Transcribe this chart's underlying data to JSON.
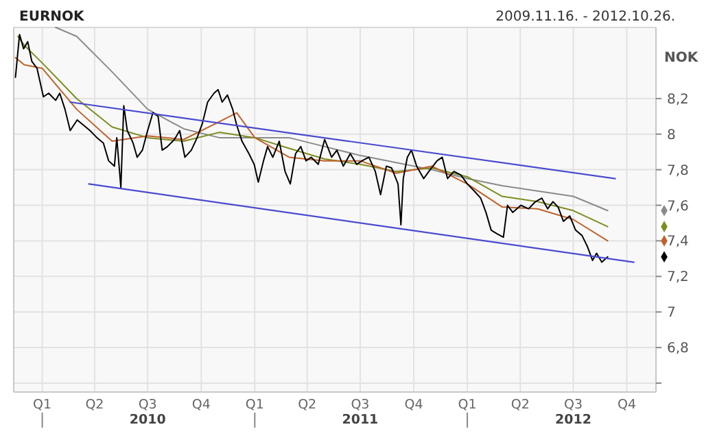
{
  "chart_data": {
    "type": "line",
    "title": "EURNOK",
    "subtitle": "2009.11.16. - 2012.10.26.",
    "ylabel": "NOK",
    "xlim": [
      "2009-11-13",
      "2012-11-20"
    ],
    "xticks": [
      {
        "value": "2010-01-01",
        "label": "Q1"
      },
      {
        "value": "2010-04-01",
        "label": "Q2"
      },
      {
        "value": "2010-07-01",
        "label": "Q3\n2010"
      },
      {
        "value": "2010-10-01",
        "label": "Q4"
      },
      {
        "value": "2011-01-01",
        "label": "Q1"
      },
      {
        "value": "2011-04-01",
        "label": "Q2"
      },
      {
        "value": "2011-07-01",
        "label": "Q3\n2011"
      },
      {
        "value": "2011-10-01",
        "label": "Q4"
      },
      {
        "value": "2012-01-01",
        "label": "Q1"
      },
      {
        "value": "2012-04-01",
        "label": "Q2"
      },
      {
        "value": "2012-07-01",
        "label": "Q3\n2012"
      },
      {
        "value": "2012-10-01",
        "label": "Q4"
      }
    ],
    "ylim": [
      6.55,
      8.6
    ],
    "yticks": [
      {
        "value": 6.6,
        "label": null
      },
      {
        "value": 6.8,
        "label": "6,8"
      },
      7,
      {
        "value": 7.2,
        "label": "7,2"
      },
      {
        "value": 7.4,
        "label": "7,4"
      },
      {
        "value": 7.6,
        "label": "7,6"
      },
      {
        "value": 7.8,
        "label": "7,8"
      },
      8,
      {
        "value": 8.2,
        "label": "8,2"
      }
    ],
    "grid": true,
    "series": [
      {
        "color": "#8a8a8a",
        "x": [
          "2010-01-24",
          "2010-03-01",
          "2010-05-01",
          "2010-07-01",
          "2010-09-01",
          "2010-11-01",
          "2011-01-01",
          "2011-03-01",
          "2011-05-01",
          "2011-07-01",
          "2011-09-01",
          "2011-11-01",
          "2012-01-01",
          "2012-03-01",
          "2012-05-01",
          "2012-07-01",
          "2012-08-29"
        ],
        "values": [
          8.6,
          8.55,
          8.35,
          8.14,
          8.03,
          7.98,
          7.98,
          7.98,
          7.93,
          7.88,
          7.84,
          7.8,
          7.75,
          7.71,
          7.68,
          7.65,
          7.57
        ]
      },
      {
        "color": "#7d8c1e",
        "x": [
          "2009-11-20",
          "2009-12-01",
          "2010-01-01",
          "2010-03-01",
          "2010-05-01",
          "2010-07-01",
          "2010-09-01",
          "2010-11-01",
          "2011-01-01",
          "2011-03-01",
          "2011-05-01",
          "2011-07-01",
          "2011-09-01",
          "2011-11-01",
          "2012-01-01",
          "2012-03-01",
          "2012-05-01",
          "2012-07-01",
          "2012-08-29"
        ],
        "values": [
          8.55,
          8.5,
          8.4,
          8.2,
          8.04,
          7.98,
          7.96,
          8.01,
          7.98,
          7.92,
          7.86,
          7.83,
          7.79,
          7.81,
          7.76,
          7.65,
          7.62,
          7.57,
          7.48
        ]
      },
      {
        "color": "#c0622a",
        "x": [
          "2009-11-16",
          "2009-12-01",
          "2010-01-01",
          "2010-03-01",
          "2010-05-01",
          "2010-07-01",
          "2010-09-01",
          "2010-11-01",
          "2010-12-01",
          "2011-01-01",
          "2011-03-01",
          "2011-05-01",
          "2011-07-01",
          "2011-09-01",
          "2011-11-01",
          "2012-01-01",
          "2012-03-01",
          "2012-05-01",
          "2012-07-01",
          "2012-08-29"
        ],
        "values": [
          8.43,
          8.39,
          8.37,
          8.14,
          7.96,
          7.99,
          7.97,
          8.07,
          8.12,
          7.98,
          7.87,
          7.85,
          7.85,
          7.78,
          7.82,
          7.72,
          7.59,
          7.58,
          7.52,
          7.4
        ]
      },
      {
        "color": "#000000",
        "x": [
          "2009-11-16",
          "2009-11-23",
          "2009-11-30",
          "2009-12-07",
          "2009-12-14",
          "2009-12-23",
          "2010-01-03",
          "2010-01-12",
          "2010-01-24",
          "2010-01-31",
          "2010-02-09",
          "2010-02-18",
          "2010-03-02",
          "2010-03-13",
          "2010-03-24",
          "2010-04-05",
          "2010-04-16",
          "2010-04-25",
          "2010-05-05",
          "2010-05-09",
          "2010-05-16",
          "2010-05-21",
          "2010-05-27",
          "2010-06-06",
          "2010-06-13",
          "2010-06-22",
          "2010-07-01",
          "2010-07-10",
          "2010-07-19",
          "2010-07-26",
          "2010-08-04",
          "2010-08-16",
          "2010-08-25",
          "2010-09-03",
          "2010-09-14",
          "2010-09-24",
          "2010-10-03",
          "2010-10-12",
          "2010-10-23",
          "2010-10-30",
          "2010-11-06",
          "2010-11-15",
          "2010-11-24",
          "2010-12-01",
          "2010-12-10",
          "2010-12-22",
          "2010-12-31",
          "2011-01-07",
          "2011-01-16",
          "2011-01-23",
          "2011-02-01",
          "2011-02-12",
          "2011-02-22",
          "2011-03-03",
          "2011-03-12",
          "2011-03-21",
          "2011-03-30",
          "2011-04-08",
          "2011-04-20",
          "2011-05-01",
          "2011-05-13",
          "2011-05-22",
          "2011-06-02",
          "2011-06-14",
          "2011-06-25",
          "2011-07-04",
          "2011-07-16",
          "2011-07-27",
          "2011-08-05",
          "2011-08-15",
          "2011-08-24",
          "2011-09-04",
          "2011-09-09",
          "2011-09-13",
          "2011-09-20",
          "2011-09-27",
          "2011-10-06",
          "2011-10-18",
          "2011-10-27",
          "2011-11-10",
          "2011-11-19",
          "2011-11-28",
          "2011-12-09",
          "2011-12-21",
          "2012-01-01",
          "2012-01-13",
          "2012-01-24",
          "2012-02-02",
          "2012-02-11",
          "2012-02-21",
          "2012-03-03",
          "2012-03-10",
          "2012-03-19",
          "2012-04-02",
          "2012-04-15",
          "2012-04-27",
          "2012-05-08",
          "2012-05-18",
          "2012-05-27",
          "2012-06-05",
          "2012-06-14",
          "2012-06-25",
          "2012-07-05",
          "2012-07-16",
          "2012-07-25",
          "2012-08-03",
          "2012-08-10",
          "2012-08-19",
          "2012-08-29"
        ],
        "values": [
          8.32,
          8.56,
          8.48,
          8.52,
          8.41,
          8.37,
          8.21,
          8.23,
          8.19,
          8.23,
          8.14,
          8.02,
          8.08,
          8.05,
          8.02,
          7.98,
          7.95,
          7.85,
          7.82,
          7.98,
          7.7,
          8.16,
          8.02,
          7.95,
          7.87,
          7.91,
          8.02,
          8.12,
          8.1,
          7.91,
          7.93,
          7.97,
          8.02,
          7.87,
          7.91,
          7.98,
          8.06,
          8.18,
          8.23,
          8.25,
          8.18,
          8.22,
          8.14,
          8.05,
          7.96,
          7.89,
          7.83,
          7.73,
          7.85,
          7.93,
          7.87,
          7.96,
          7.79,
          7.72,
          7.89,
          7.93,
          7.85,
          7.87,
          7.83,
          7.97,
          7.87,
          7.91,
          7.82,
          7.89,
          7.83,
          7.85,
          7.87,
          7.79,
          7.66,
          7.82,
          7.81,
          7.72,
          7.49,
          7.75,
          7.87,
          7.91,
          7.82,
          7.75,
          7.79,
          7.85,
          7.87,
          7.75,
          7.79,
          7.77,
          7.72,
          7.68,
          7.64,
          7.56,
          7.46,
          7.44,
          7.42,
          7.6,
          7.56,
          7.6,
          7.58,
          7.62,
          7.64,
          7.58,
          7.62,
          7.59,
          7.51,
          7.54,
          7.46,
          7.43,
          7.37,
          7.29,
          7.33,
          7.28,
          7.31
        ]
      },
      {
        "type": "line",
        "color": "#4a4ad0",
        "x": [
          "2010-02-18",
          "2012-09-11"
        ],
        "values": [
          8.18,
          7.75
        ]
      },
      {
        "type": "line",
        "color": "#4a4ad0",
        "x": [
          "2010-03-22",
          "2012-10-13"
        ],
        "values": [
          7.72,
          7.28
        ]
      }
    ]
  }
}
